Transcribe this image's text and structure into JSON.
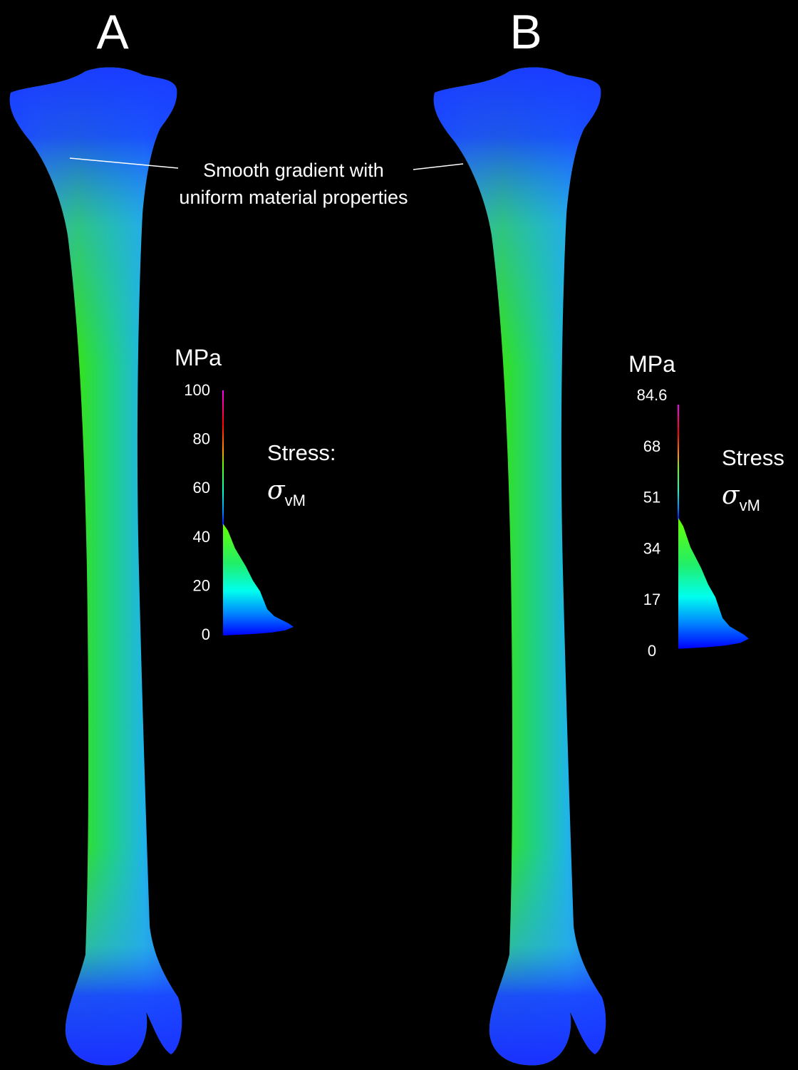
{
  "panels": [
    {
      "label": "A",
      "unit": "MPa",
      "scale_ticks": [
        100,
        80,
        60,
        40,
        20,
        0
      ],
      "quantity": "Stress:",
      "symbol": "σ",
      "subscript": "vM"
    },
    {
      "label": "B",
      "unit": "MPa",
      "scale_ticks": [
        84.6,
        68,
        51,
        34,
        17,
        0
      ],
      "quantity": "Stress",
      "symbol": "σ",
      "subscript": "vM"
    }
  ],
  "annotation": {
    "lines": [
      "Smooth gradient with",
      "uniform material properties"
    ]
  }
}
